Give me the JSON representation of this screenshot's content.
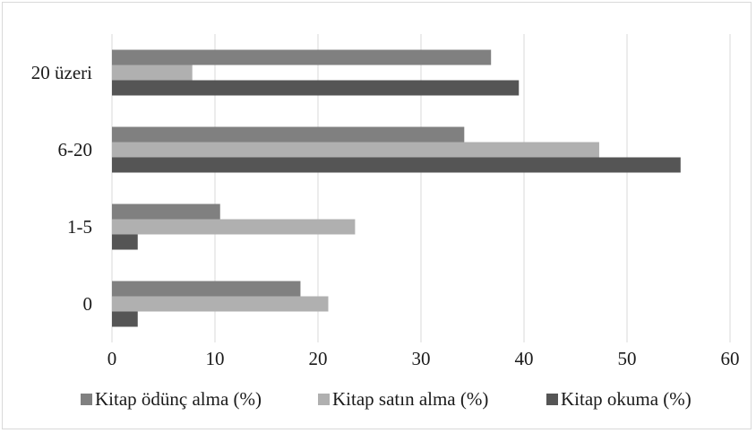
{
  "chart_data": {
    "type": "bar",
    "orientation": "horizontal",
    "categories": [
      "0",
      "1-5",
      "6-20",
      "20 üzeri"
    ],
    "series": [
      {
        "name": "Kitap ödünç alma (%)",
        "values": [
          18.3,
          10.5,
          34.2,
          36.8
        ],
        "color": "#808080"
      },
      {
        "name": "Kitap satın alma (%)",
        "values": [
          21.0,
          23.6,
          47.3,
          7.8
        ],
        "color": "#b0b0b0"
      },
      {
        "name": "Kitap okuma (%)",
        "values": [
          2.5,
          2.5,
          55.2,
          39.5
        ],
        "color": "#555555"
      }
    ],
    "title": "",
    "xlabel": "",
    "ylabel": "",
    "xlim": [
      0,
      60
    ],
    "xticks": [
      "0",
      "10",
      "20",
      "30",
      "40",
      "50",
      "60"
    ],
    "grid": "vertical",
    "legend_position": "bottom"
  }
}
